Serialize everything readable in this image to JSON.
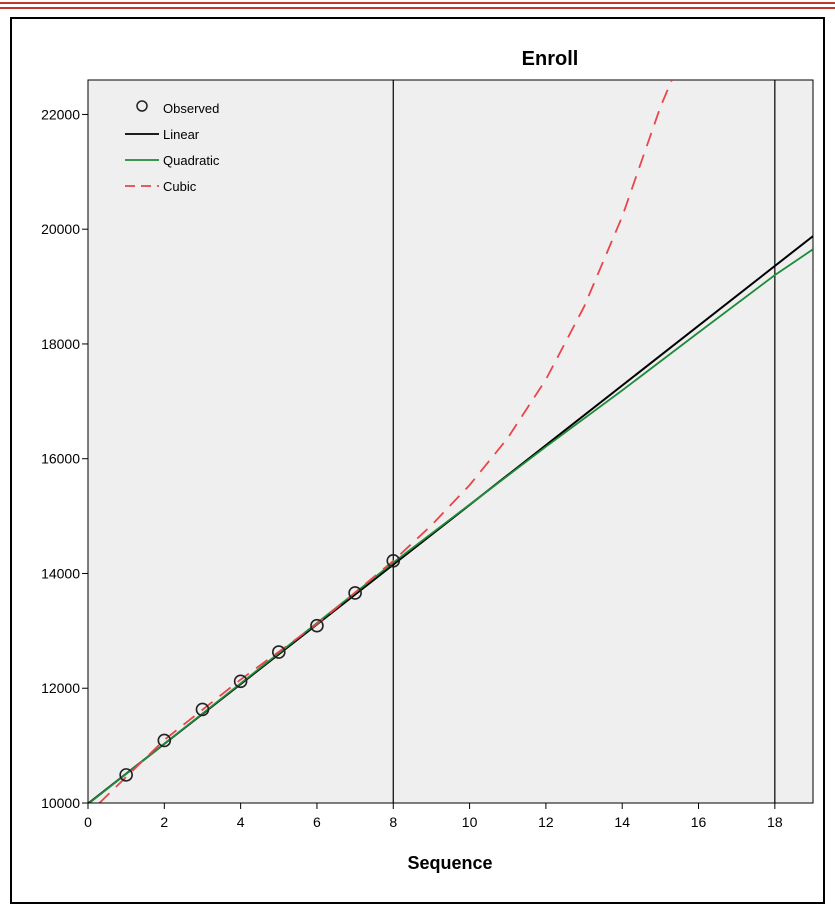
{
  "chart_data": {
    "type": "line",
    "title": "Enroll",
    "xlabel": "Sequence",
    "ylabel": "",
    "xlim": [
      0,
      19
    ],
    "ylim": [
      10000,
      22600
    ],
    "x_ticks": [
      0,
      2,
      4,
      6,
      8,
      10,
      12,
      14,
      16,
      18
    ],
    "y_ticks": [
      10000,
      12000,
      14000,
      16000,
      18000,
      20000,
      22000
    ],
    "reference_lines_x": [
      8,
      18
    ],
    "grid": false,
    "background": "#efefef",
    "legend": {
      "position": "top-left",
      "entries": [
        "Observed",
        "Linear",
        "Quadratic",
        "Cubic"
      ]
    },
    "observed": {
      "name": "Observed",
      "x": [
        1,
        2,
        3,
        4,
        5,
        6,
        7,
        8
      ],
      "y": [
        10490,
        11090,
        11630,
        12120,
        12630,
        13090,
        13660,
        14220
      ]
    },
    "series": [
      {
        "name": "Linear",
        "color": "#000000",
        "style": "solid",
        "x": [
          0,
          19
        ],
        "y": [
          9990,
          19880
        ]
      },
      {
        "name": "Quadratic",
        "color": "#1e8c3a",
        "style": "solid",
        "x": [
          0,
          8,
          10,
          12,
          14,
          16,
          18,
          19
        ],
        "y": [
          9980,
          14190,
          15200,
          16210,
          17190,
          18200,
          19200,
          19650
        ]
      },
      {
        "name": "Cubic",
        "color": "#e8464b",
        "style": "dashed",
        "x": [
          0.3,
          2,
          4,
          6,
          8,
          9,
          10,
          11,
          12,
          13,
          14,
          15,
          15.3
        ],
        "y": [
          10000,
          11100,
          12150,
          13120,
          14220,
          14840,
          15540,
          16360,
          17380,
          18650,
          20220,
          22130,
          22600
        ]
      }
    ]
  }
}
